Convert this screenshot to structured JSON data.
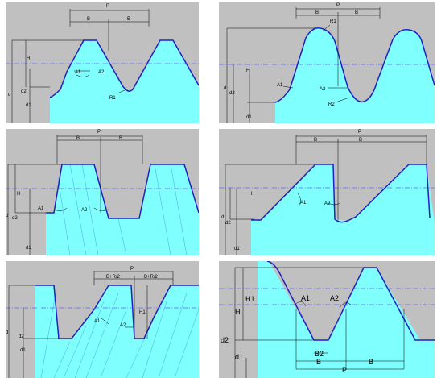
{
  "panels": [
    {
      "labels": {
        "P": "P",
        "B1": "B",
        "B2": "B",
        "H": "H",
        "d": "d",
        "d2": "d2",
        "d1": "d1",
        "A1": "A1",
        "A2": "A2",
        "R1": "R1"
      }
    },
    {
      "labels": {
        "P": "P",
        "B1": "B",
        "B2": "B",
        "R1": "R1",
        "H": "H",
        "d": "d",
        "d2": "d2",
        "d1": "d1",
        "A1": "A1",
        "A2": "A2",
        "R2": "R2"
      }
    },
    {
      "labels": {
        "P": "P",
        "B1": "B",
        "B2": "B",
        "H": "H",
        "d": "d",
        "d2": "d2",
        "d1": "d1",
        "A1": "A1",
        "A2": "A2"
      }
    },
    {
      "labels": {
        "P": "P",
        "B1": "B",
        "B2": "B",
        "H": "H",
        "d": "d",
        "d2": "d2",
        "d1": "d1",
        "A1": "A1",
        "A2": "A2"
      }
    },
    {
      "labels": {
        "P": "P",
        "B1": "B+R/2",
        "B2": "B+R/2",
        "H1": "H1",
        "d": "d",
        "d2": "d2",
        "d1": "d1",
        "A1": "A1",
        "A2": "A2"
      }
    },
    {
      "labels": {
        "H1": "H1",
        "H": "H",
        "d2": "d2",
        "d1": "d1",
        "A1": "A1",
        "A2": "A2",
        "B2": "B2",
        "B1": "B",
        "B3": "B",
        "P": "P"
      }
    }
  ],
  "colors": {
    "background": "#c0c0c0",
    "fill": "#80ffff",
    "profile": "#2020c0",
    "pitchline": "#6060ff"
  }
}
